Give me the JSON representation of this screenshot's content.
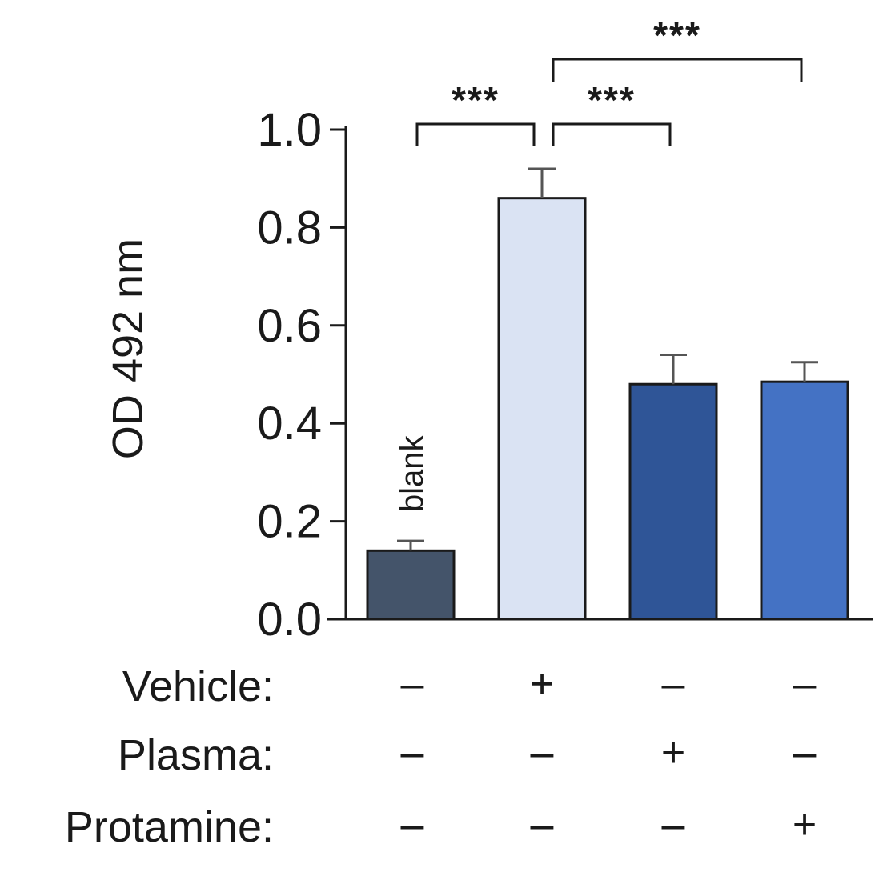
{
  "chart_data": {
    "type": "bar",
    "ylabel": "OD 492 nm",
    "ylim": [
      0,
      1.0
    ],
    "yticks": [
      "0.0",
      "0.2",
      "0.4",
      "0.6",
      "0.8",
      "1.0"
    ],
    "categories": [
      "blank",
      "Vehicle",
      "Plasma",
      "Protamine"
    ],
    "values": [
      0.14,
      0.86,
      0.48,
      0.485
    ],
    "errors": [
      0.02,
      0.06,
      0.06,
      0.04
    ],
    "bar_colors": [
      "#44546a",
      "#dae3f3",
      "#2f5597",
      "#4472c4"
    ],
    "bar_labels": [
      "blank",
      "",
      "",
      ""
    ],
    "conditions": [
      {
        "label": "Vehicle:",
        "signs": [
          "–",
          "+",
          "–",
          "–"
        ]
      },
      {
        "label": "Plasma:",
        "signs": [
          "–",
          "–",
          "+",
          "–"
        ]
      },
      {
        "label": "Protamine:",
        "signs": [
          "–",
          "–",
          "–",
          "+"
        ]
      }
    ],
    "significance": [
      {
        "from": 0,
        "to": 1,
        "label": "***",
        "level": 1
      },
      {
        "from": 1,
        "to": 2,
        "label": "***",
        "level": 1
      },
      {
        "from": 1,
        "to": 3,
        "label": "***",
        "level": 2
      }
    ]
  }
}
